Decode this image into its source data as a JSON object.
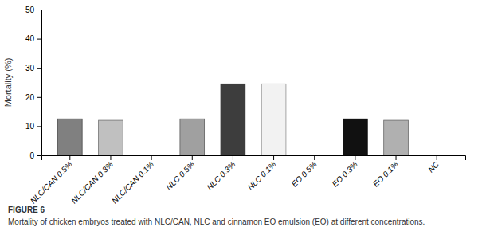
{
  "chart_data": {
    "type": "bar",
    "y_label": "Mortality (%)",
    "categories": [
      "NLC/CAN 0.5%",
      "NLC/CAN 0.3%",
      "NLC/CAN 0.1%",
      "NLC 0.5%",
      "NLC 0.3%",
      "NLC 0.1%",
      "EO 0.5%",
      "EO 0.3%",
      "EO 0.1%",
      "NC"
    ],
    "values": [
      12.5,
      12.0,
      0,
      12.5,
      24.5,
      24.5,
      0,
      12.5,
      12.0,
      0
    ],
    "colors": [
      "#808080",
      "#c0c0c0",
      "#ffffff",
      "#a0a0a0",
      "#3d3d3d",
      "#f2f2f2",
      "#ffffff",
      "#111111",
      "#b0b0b0",
      "#ffffff"
    ],
    "ylim": [
      0,
      50
    ],
    "yticks": [
      0,
      10,
      20,
      30,
      40,
      50
    ],
    "grid": false,
    "annotations": [
      "FIGURE 6",
      "Mortality of chicken embryos treated with NLC/CAN, NLC and cinnamon EO emulsion (EO) at different concentrations."
    ]
  }
}
